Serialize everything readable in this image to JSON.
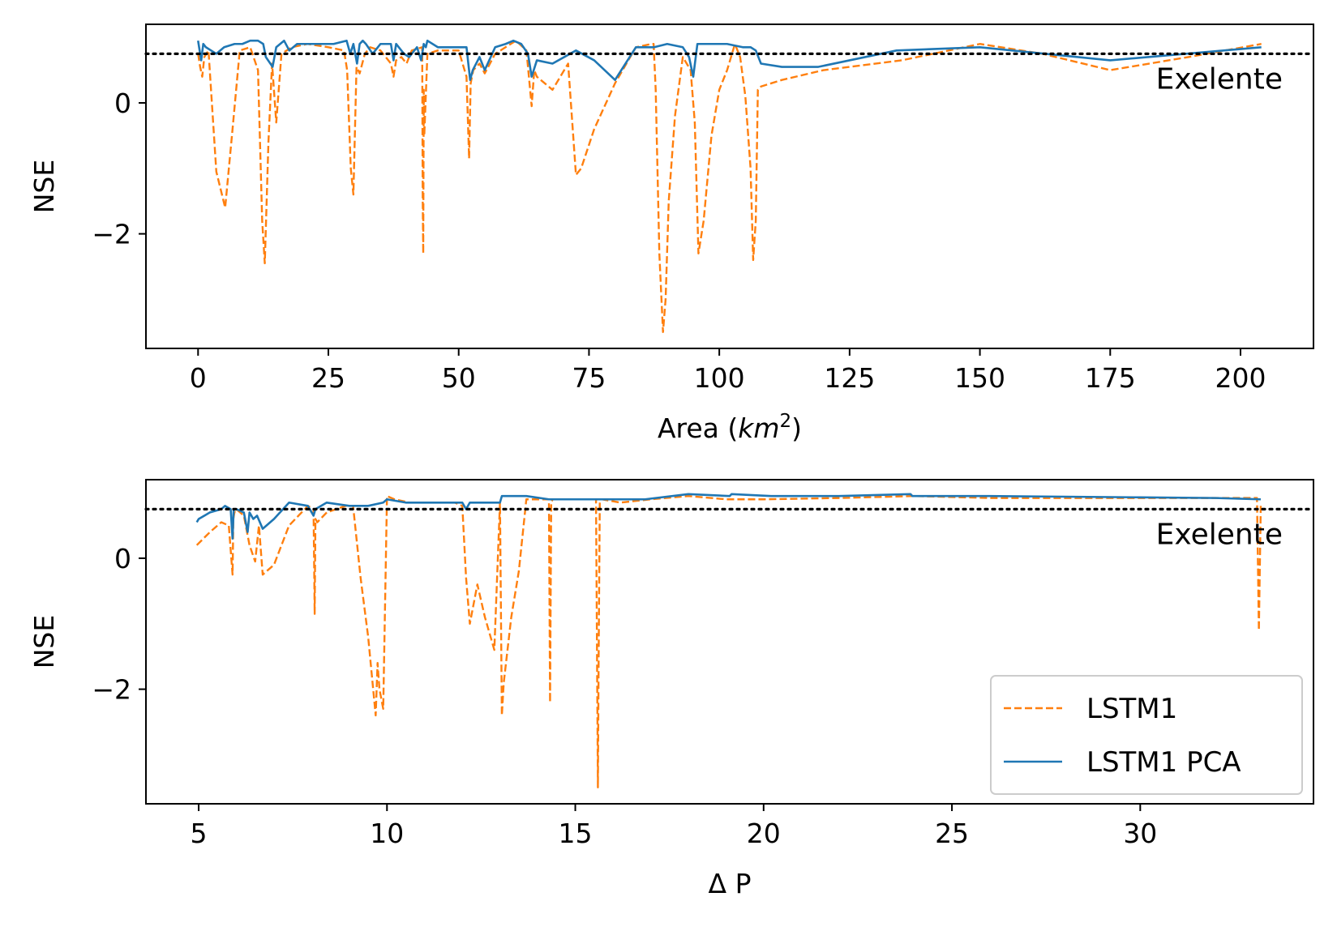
{
  "chart_data": [
    {
      "type": "line",
      "xlabel": "Area (",
      "xlabel_unit": "km",
      "xlabel_exp": "2",
      "xlabel_close": ")",
      "ylabel": "NSE",
      "xlim": [
        -10,
        214
      ],
      "ylim": [
        -3.75,
        1.2
      ],
      "xticks": [
        0,
        25,
        50,
        75,
        100,
        125,
        150,
        175,
        200
      ],
      "xtick_labels": [
        "0",
        "25",
        "50",
        "75",
        "100",
        "125",
        "150",
        "175",
        "200"
      ],
      "yticks": [
        0,
        -2
      ],
      "ytick_labels": [
        "0",
        "−2"
      ],
      "threshold": {
        "value": 0.75,
        "label": "Exelente",
        "color": "#000000",
        "style": "dotted"
      },
      "series": [
        {
          "name": "LSTM1",
          "color": "#ff7f0e",
          "style": "dashed",
          "x": [
            0,
            0.4,
            0.8,
            1.2,
            2,
            3.5,
            5.2,
            6.5,
            8,
            10,
            11.5,
            12.3,
            12.8,
            13.5,
            14.2,
            15,
            16,
            18,
            21,
            25,
            28,
            28.6,
            29.3,
            29.8,
            30.4,
            31,
            32,
            33,
            35,
            37,
            37.5,
            38,
            39,
            40,
            41,
            43,
            43.1,
            43.2,
            43.3,
            43.4,
            44,
            46,
            50,
            51.5,
            52,
            52.3,
            52.8,
            54,
            55,
            57,
            59,
            61,
            63,
            64,
            64.5,
            65,
            68,
            71,
            72.5,
            73.5,
            76,
            80,
            84,
            87,
            87.4,
            87.8,
            88.5,
            89.2,
            89.7,
            90.3,
            91.5,
            93,
            94.5,
            95.3,
            96,
            97,
            98.5,
            100,
            101.5,
            103,
            104,
            105,
            106,
            106.5,
            107,
            107.4,
            108,
            112,
            120,
            135,
            150,
            162,
            175,
            190,
            204
          ],
          "y": [
            0.75,
            0.55,
            0.4,
            0.7,
            0.8,
            -1.05,
            -1.6,
            -0.5,
            0.8,
            0.85,
            0.5,
            -1.8,
            -2.45,
            -0.6,
            0.6,
            -0.3,
            0.75,
            0.85,
            0.9,
            0.85,
            0.8,
            0.5,
            -1.0,
            -1.4,
            0.55,
            0.45,
            0.75,
            0.85,
            0.8,
            0.6,
            0.4,
            0.65,
            0.7,
            0.6,
            0.8,
            0.85,
            -1.5,
            -2.3,
            0.2,
            -0.5,
            0.75,
            0.8,
            0.8,
            0.4,
            -0.85,
            0.3,
            0.5,
            0.6,
            0.45,
            0.75,
            0.85,
            0.95,
            0.8,
            -0.05,
            0.5,
            0.4,
            0.2,
            0.6,
            -1.1,
            -1.0,
            -0.4,
            0.3,
            0.85,
            0.9,
            0.9,
            0.2,
            -2.3,
            -3.5,
            -3.0,
            -1.5,
            -0.2,
            0.7,
            0.5,
            -0.3,
            -2.3,
            -1.8,
            -0.5,
            0.2,
            0.5,
            0.9,
            0.7,
            0.1,
            -1.0,
            -2.4,
            -1.8,
            0.2,
            0.25,
            0.35,
            0.5,
            0.65,
            0.9,
            0.75,
            0.5,
            0.7,
            0.9
          ]
        },
        {
          "name": "LSTM1 PCA",
          "color": "#1f77b4",
          "style": "solid",
          "x": [
            0,
            0.3,
            0.6,
            1,
            1.5,
            2.5,
            3.5,
            5,
            7,
            8.5,
            10,
            11.5,
            12.5,
            13,
            14.3,
            15,
            16.5,
            17.5,
            19,
            22,
            26,
            28.5,
            29.2,
            29.8,
            30.5,
            31,
            31.6,
            32.2,
            33.5,
            35,
            37,
            37.5,
            38,
            39.5,
            40.5,
            42,
            42.8,
            43.3,
            43.7,
            44,
            46,
            50,
            51.5,
            52.2,
            52.7,
            54,
            55,
            57,
            59,
            60.5,
            62,
            63.3,
            64,
            65,
            68,
            72.5,
            76,
            80,
            84,
            87.5,
            90,
            93,
            94.2,
            95,
            95.8,
            101.5,
            104.5,
            106,
            107,
            108,
            112,
            119,
            134,
            150,
            175,
            204
          ],
          "y": [
            0.95,
            0.8,
            0.65,
            0.9,
            0.85,
            0.8,
            0.75,
            0.85,
            0.9,
            0.9,
            0.95,
            0.95,
            0.9,
            0.7,
            0.55,
            0.85,
            0.95,
            0.8,
            0.9,
            0.9,
            0.9,
            0.95,
            0.75,
            0.9,
            0.6,
            0.9,
            0.95,
            0.9,
            0.75,
            0.9,
            0.9,
            0.65,
            0.9,
            0.75,
            0.7,
            0.85,
            0.65,
            0.9,
            0.85,
            0.95,
            0.85,
            0.85,
            0.85,
            0.35,
            0.5,
            0.7,
            0.5,
            0.85,
            0.9,
            0.95,
            0.9,
            0.75,
            0.4,
            0.65,
            0.6,
            0.8,
            0.65,
            0.35,
            0.85,
            0.85,
            0.9,
            0.85,
            0.7,
            0.4,
            0.9,
            0.9,
            0.85,
            0.85,
            0.8,
            0.6,
            0.55,
            0.55,
            0.8,
            0.85,
            0.65,
            0.85
          ]
        }
      ]
    },
    {
      "type": "line",
      "xlabel": "Δ P",
      "ylabel": "NSE",
      "xlim": [
        3.6,
        34.6
      ],
      "ylim": [
        -3.75,
        1.2
      ],
      "xticks": [
        5,
        10,
        15,
        20,
        25,
        30
      ],
      "xtick_labels": [
        "5",
        "10",
        "15",
        "20",
        "25",
        "30"
      ],
      "yticks": [
        0,
        -2
      ],
      "ytick_labels": [
        "0",
        "−2"
      ],
      "threshold": {
        "value": 0.75,
        "label": "Exelente",
        "color": "#000000",
        "style": "dotted"
      },
      "legend_position": "lower-right",
      "series": [
        {
          "name": "LSTM1",
          "color": "#ff7f0e",
          "style": "dashed",
          "x": [
            4.95,
            5.3,
            5.6,
            5.8,
            5.9,
            5.92,
            5.95,
            6.0,
            6.2,
            6.35,
            6.5,
            6.6,
            6.7,
            7.0,
            7.4,
            7.9,
            8.05,
            8.08,
            8.1,
            8.15,
            8.4,
            8.9,
            9.1,
            9.3,
            9.5,
            9.7,
            9.75,
            9.8,
            9.9,
            10.0,
            10.2,
            10.6,
            11.5,
            11.8,
            12.0,
            12.1,
            12.2,
            12.4,
            12.6,
            12.85,
            13.0,
            13.05,
            13.1,
            13.3,
            13.5,
            13.7,
            14.0,
            14.3,
            14.33,
            14.36,
            14.4,
            15,
            15.55,
            15.6,
            15.62,
            15.65,
            15.7,
            16.2,
            17,
            18,
            19,
            20,
            22,
            24,
            26,
            28,
            30,
            32,
            33.1,
            33.15,
            33.2
          ],
          "y": [
            0.2,
            0.4,
            0.55,
            0.5,
            -0.25,
            0.6,
            0.7,
            0.75,
            0.65,
            0.2,
            -0.05,
            0.5,
            -0.25,
            -0.1,
            0.5,
            0.8,
            0.75,
            -0.85,
            0.6,
            0.55,
            0.7,
            0.8,
            0.8,
            -0.3,
            -1.2,
            -2.4,
            -1.6,
            -2.0,
            -2.3,
            0.95,
            0.9,
            0.85,
            0.85,
            0.85,
            0.8,
            -0.3,
            -1.0,
            -0.4,
            -0.9,
            -1.4,
            0.85,
            -2.4,
            -1.9,
            -0.9,
            -0.2,
            0.9,
            0.9,
            0.9,
            -2.2,
            0.85,
            0.9,
            0.9,
            0.9,
            -3.5,
            -1.5,
            0.85,
            0.9,
            0.85,
            0.9,
            0.95,
            0.9,
            0.9,
            0.92,
            0.95,
            0.92,
            0.92,
            0.92,
            0.92,
            0.92,
            -1.1,
            0.8
          ]
        },
        {
          "name": "LSTM1 PCA",
          "color": "#1f77b4",
          "style": "solid",
          "x": [
            4.95,
            5.0,
            5.3,
            5.6,
            5.7,
            5.85,
            5.9,
            5.93,
            6.0,
            6.2,
            6.3,
            6.35,
            6.45,
            6.55,
            6.7,
            7.0,
            7.4,
            7.9,
            8.05,
            8.1,
            8.4,
            9.0,
            9.5,
            9.9,
            10.0,
            10.5,
            11.5,
            12.0,
            12.1,
            12.2,
            12.5,
            13.0,
            13.05,
            13.7,
            14.3,
            15.6,
            16.8,
            16.85,
            18,
            19.1,
            19.15,
            20.2,
            22,
            23.9,
            23.95,
            26,
            28,
            30,
            32,
            33.2
          ],
          "y": [
            0.55,
            0.6,
            0.7,
            0.75,
            0.8,
            0.75,
            0.3,
            0.75,
            0.75,
            0.7,
            0.4,
            0.7,
            0.6,
            0.65,
            0.45,
            0.6,
            0.85,
            0.8,
            0.65,
            0.75,
            0.85,
            0.8,
            0.8,
            0.85,
            0.9,
            0.85,
            0.85,
            0.85,
            0.75,
            0.85,
            0.85,
            0.85,
            0.95,
            0.95,
            0.9,
            0.9,
            0.9,
            0.9,
            0.98,
            0.95,
            0.98,
            0.95,
            0.95,
            0.98,
            0.95,
            0.95,
            0.94,
            0.93,
            0.92,
            0.9
          ]
        }
      ]
    }
  ]
}
